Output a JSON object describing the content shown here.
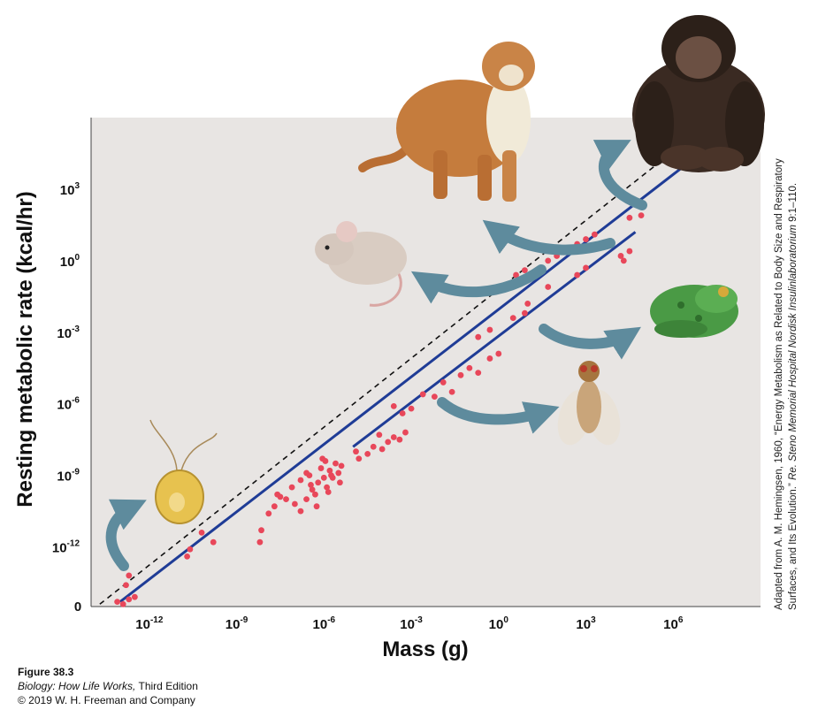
{
  "chart_data": {
    "type": "scatter",
    "title": "",
    "xlabel": "Mass (g)",
    "ylabel": "Resting metabolic rate (kcal/hr)",
    "x_scale": "log",
    "y_scale": "log",
    "x_range_log10": [
      -14,
      9
    ],
    "y_range_log10": [
      -14.5,
      6
    ],
    "x_ticks": [
      {
        "base": "10",
        "exp": "-12",
        "log": -12
      },
      {
        "base": "10",
        "exp": "-9",
        "log": -9
      },
      {
        "base": "10",
        "exp": "-6",
        "log": -6
      },
      {
        "base": "10",
        "exp": "-3",
        "log": -3
      },
      {
        "base": "10",
        "exp": "0",
        "log": 0
      },
      {
        "base": "10",
        "exp": "3",
        "log": 3
      },
      {
        "base": "10",
        "exp": "6",
        "log": 6
      }
    ],
    "y_ticks": [
      {
        "base": "10",
        "exp": "3",
        "log": 3
      },
      {
        "base": "10",
        "exp": "0",
        "log": 0
      },
      {
        "base": "10",
        "exp": "-3",
        "log": -3
      },
      {
        "base": "10",
        "exp": "-6",
        "log": -6
      },
      {
        "base": "10",
        "exp": "-9",
        "log": -9
      },
      {
        "base": "10",
        "exp": "-12",
        "log": -12
      }
    ],
    "origin_label": "0",
    "grid": false,
    "background": "#e8e5e3",
    "points_color": "#e8475a",
    "line_color": "#1f3c96",
    "points_log10": [
      [
        -13.1,
        -14.3
      ],
      [
        -12.9,
        -14.4
      ],
      [
        -12.7,
        -14.2
      ],
      [
        -12.5,
        -14.1
      ],
      [
        -12.8,
        -13.6
      ],
      [
        -12.7,
        -13.2
      ],
      [
        -10.7,
        -12.4
      ],
      [
        -10.6,
        -12.1
      ],
      [
        -10.2,
        -11.4
      ],
      [
        -9.8,
        -11.8
      ],
      [
        -8.2,
        -11.8
      ],
      [
        -8.15,
        -11.3
      ],
      [
        -7.9,
        -10.6
      ],
      [
        -7.7,
        -10.3
      ],
      [
        -7.5,
        -9.9
      ],
      [
        -7.3,
        -10.0
      ],
      [
        -7.1,
        -9.5
      ],
      [
        -7.6,
        -9.8
      ],
      [
        -7.0,
        -10.2
      ],
      [
        -6.8,
        -10.5
      ],
      [
        -6.6,
        -10.0
      ],
      [
        -6.4,
        -9.6
      ],
      [
        -6.2,
        -9.3
      ],
      [
        -6.0,
        -9.1
      ],
      [
        -5.8,
        -8.8
      ],
      [
        -5.6,
        -8.5
      ],
      [
        -5.4,
        -8.6
      ],
      [
        -6.5,
        -9.0
      ],
      [
        -6.3,
        -9.8
      ],
      [
        -6.1,
        -8.7
      ],
      [
        -5.9,
        -9.5
      ],
      [
        -5.7,
        -9.1
      ],
      [
        -5.5,
        -8.9
      ],
      [
        -6.8,
        -9.2
      ],
      [
        -6.6,
        -8.9
      ],
      [
        -5.95,
        -8.4
      ],
      [
        -5.75,
        -9.0
      ],
      [
        -6.25,
        -10.3
      ],
      [
        -5.45,
        -9.3
      ],
      [
        -6.05,
        -8.3
      ],
      [
        -5.85,
        -9.7
      ],
      [
        -6.45,
        -9.4
      ],
      [
        -4.8,
        -8.3
      ],
      [
        -4.5,
        -8.1
      ],
      [
        -4.3,
        -7.8
      ],
      [
        -4.0,
        -7.9
      ],
      [
        -3.8,
        -7.6
      ],
      [
        -3.6,
        -7.4
      ],
      [
        -3.4,
        -7.5
      ],
      [
        -3.2,
        -7.2
      ],
      [
        -4.9,
        -8.0
      ],
      [
        -4.1,
        -7.3
      ],
      [
        -3.6,
        -6.1
      ],
      [
        -3.3,
        -6.4
      ],
      [
        -3.0,
        -6.2
      ],
      [
        -2.6,
        -5.6
      ],
      [
        -2.2,
        -5.7
      ],
      [
        -1.9,
        -5.1
      ],
      [
        -1.6,
        -5.5
      ],
      [
        -1.3,
        -4.8
      ],
      [
        -1.0,
        -4.5
      ],
      [
        -0.7,
        -4.7
      ],
      [
        -0.3,
        -4.1
      ],
      [
        0.0,
        -3.9
      ],
      [
        -0.7,
        -3.2
      ],
      [
        -0.3,
        -2.9
      ],
      [
        0.5,
        -2.4
      ],
      [
        0.9,
        -2.2
      ],
      [
        1.0,
        -1.8
      ],
      [
        1.7,
        -1.1
      ],
      [
        2.7,
        -0.6
      ],
      [
        3.0,
        -0.3
      ],
      [
        4.2,
        0.2
      ],
      [
        4.5,
        0.4
      ],
      [
        4.3,
        0.0
      ],
      [
        0.6,
        -0.6
      ],
      [
        0.9,
        -0.4
      ],
      [
        1.7,
        0.0
      ],
      [
        2.0,
        0.2
      ],
      [
        2.7,
        0.7
      ],
      [
        3.0,
        0.9
      ],
      [
        3.3,
        1.1
      ],
      [
        4.5,
        1.8
      ],
      [
        4.9,
        1.9
      ]
    ],
    "fit_lines_log10": [
      {
        "from": [
          -13.0,
          -14.3
        ],
        "to": [
          6.3,
          3.9
        ]
      },
      {
        "from": [
          -5.0,
          -7.8
        ],
        "to": [
          4.7,
          1.2
        ]
      }
    ],
    "reference_line_log10": {
      "from": [
        -13.7,
        -14.4
      ],
      "to": [
        5.5,
        4.1
      ]
    }
  },
  "annotations": {
    "side_credit_prefix": "Adapted from A. M. Hemingsen, 1960, “Energy Metabolism as Related to Body Size and Respiratory Surfaces, and Its Evolution.”",
    "side_credit_source": "Re. Steno Memorial Hospital Nordisk Insulinlaboratorium",
    "side_credit_suffix": "9:1–110."
  },
  "caption": {
    "figure": "Figure 38.3",
    "book_title": "Biology: How Life Works,",
    "book_edition": "Third Edition",
    "copyright": "© 2019 W. H. Freeman and Company"
  },
  "colors": {
    "arrow": "#5e8b9d",
    "fur_cougar": "#c57c3d",
    "fur_chimp": "#3a2a22",
    "mouse": "#d9ccc2",
    "frog": "#4a9a45",
    "fly": "#c9a57a",
    "protist": "#e7c24f"
  }
}
